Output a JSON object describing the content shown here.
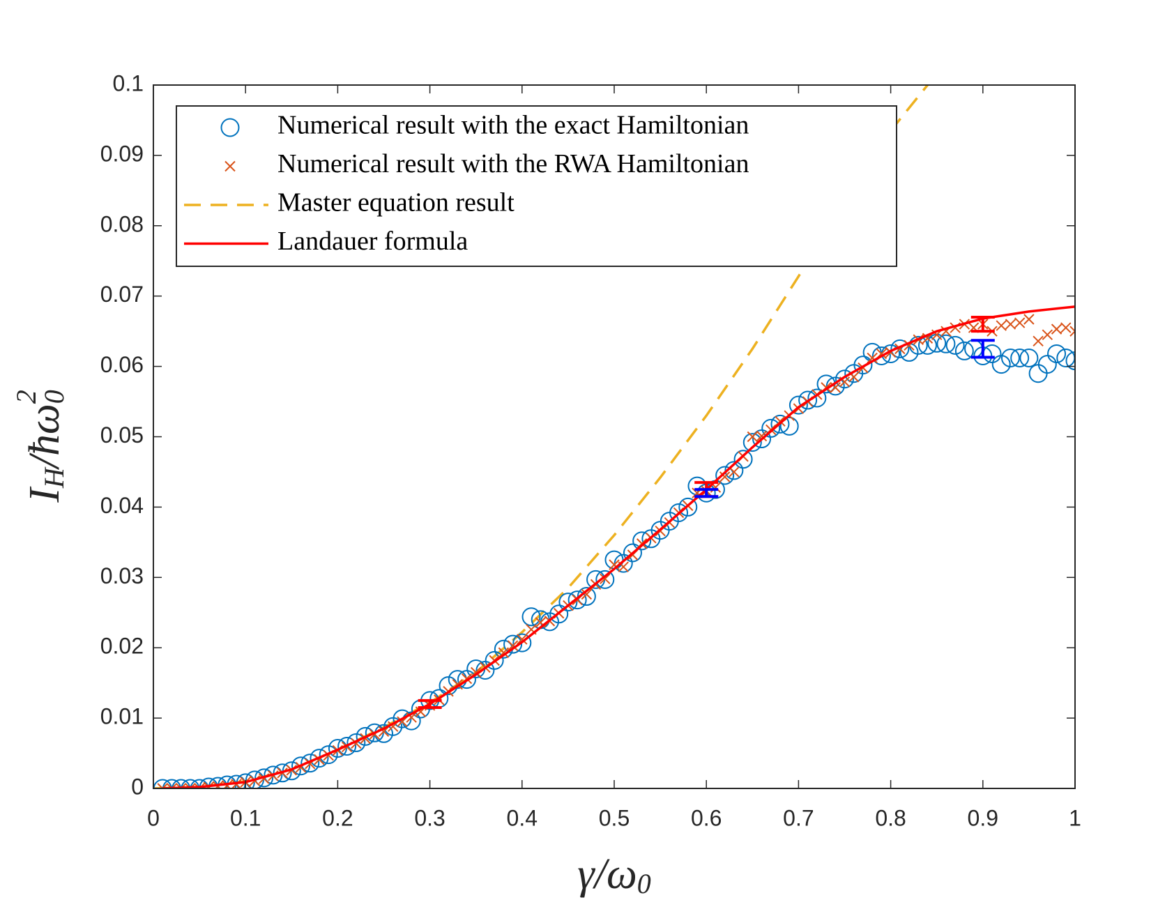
{
  "chart_data": {
    "type": "scatter",
    "xlabel": [
      "γ/ω",
      "0"
    ],
    "ylabel": [
      "I",
      "H",
      "/ħω",
      "0",
      "2"
    ],
    "xlim": [
      0,
      1
    ],
    "xticks": [
      0,
      0.1,
      0.2,
      0.3,
      0.4,
      0.5,
      0.6,
      0.7,
      0.8,
      0.9,
      1
    ],
    "ylim": [
      0,
      0.1
    ],
    "yticks": [
      0,
      0.01,
      0.02,
      0.03,
      0.04,
      0.05,
      0.06,
      0.07,
      0.08,
      0.09,
      0.1
    ],
    "grid": false,
    "legend": "upper left",
    "series": [
      {
        "name": "Numerical result with the exact Hamiltonian",
        "marker": "circle",
        "color": "#0072BD",
        "x": [
          0.01,
          0.02,
          0.03,
          0.04,
          0.05,
          0.06,
          0.07,
          0.08,
          0.09,
          0.1,
          0.11,
          0.12,
          0.13,
          0.14,
          0.15,
          0.16,
          0.17,
          0.18,
          0.19,
          0.2,
          0.21,
          0.22,
          0.23,
          0.24,
          0.25,
          0.26,
          0.27,
          0.28,
          0.29,
          0.3,
          0.31,
          0.32,
          0.33,
          0.34,
          0.35,
          0.36,
          0.37,
          0.38,
          0.39,
          0.4,
          0.41,
          0.42,
          0.43,
          0.44,
          0.45,
          0.46,
          0.47,
          0.48,
          0.49,
          0.5,
          0.51,
          0.52,
          0.53,
          0.54,
          0.55,
          0.56,
          0.57,
          0.58,
          0.59,
          0.6,
          0.61,
          0.62,
          0.63,
          0.64,
          0.65,
          0.66,
          0.67,
          0.68,
          0.69,
          0.7,
          0.71,
          0.72,
          0.73,
          0.74,
          0.75,
          0.76,
          0.77,
          0.78,
          0.79,
          0.8,
          0.81,
          0.82,
          0.83,
          0.84,
          0.85,
          0.86,
          0.87,
          0.88,
          0.89,
          0.9,
          0.91,
          0.92,
          0.93,
          0.94,
          0.95,
          0.96,
          0.97,
          0.98,
          0.99,
          1
        ],
        "values": [
          0,
          0,
          0,
          0,
          0,
          0.0002,
          0.0003,
          0.0005,
          0.0006,
          0.0008,
          0.0012,
          0.0015,
          0.0019,
          0.0022,
          0.0025,
          0.0032,
          0.0036,
          0.0043,
          0.0048,
          0.0057,
          0.006,
          0.0065,
          0.0074,
          0.0079,
          0.0078,
          0.0088,
          0.0099,
          0.0096,
          0.0113,
          0.0125,
          0.0128,
          0.0146,
          0.0155,
          0.0155,
          0.017,
          0.0168,
          0.0182,
          0.0198,
          0.0205,
          0.0207,
          0.0244,
          0.024,
          0.0237,
          0.0248,
          0.0265,
          0.0268,
          0.0273,
          0.0297,
          0.0297,
          0.0325,
          0.032,
          0.0335,
          0.0352,
          0.0355,
          0.0367,
          0.038,
          0.0392,
          0.04,
          0.043,
          0.042,
          0.0425,
          0.0445,
          0.0452,
          0.0468,
          0.0492,
          0.0497,
          0.0512,
          0.0518,
          0.0515,
          0.0545,
          0.0552,
          0.0555,
          0.0575,
          0.0572,
          0.0582,
          0.059,
          0.0602,
          0.062,
          0.0615,
          0.0618,
          0.0625,
          0.062,
          0.063,
          0.063,
          0.0633,
          0.0632,
          0.063,
          0.0622,
          0.0625,
          0.0615,
          0.0618,
          0.0603,
          0.0612,
          0.0612,
          0.0612,
          0.059,
          0.0603,
          0.0618,
          0.0612,
          0.0608
        ]
      },
      {
        "name": "Numerical result with the RWA Hamiltonian",
        "marker": "cross",
        "color": "#D95319",
        "x": [
          0.01,
          0.02,
          0.03,
          0.04,
          0.05,
          0.06,
          0.07,
          0.08,
          0.09,
          0.1,
          0.11,
          0.12,
          0.13,
          0.14,
          0.15,
          0.16,
          0.17,
          0.18,
          0.19,
          0.2,
          0.21,
          0.22,
          0.23,
          0.24,
          0.25,
          0.26,
          0.27,
          0.28,
          0.29,
          0.3,
          0.31,
          0.32,
          0.33,
          0.34,
          0.35,
          0.36,
          0.37,
          0.38,
          0.39,
          0.4,
          0.41,
          0.42,
          0.43,
          0.44,
          0.45,
          0.46,
          0.47,
          0.48,
          0.49,
          0.5,
          0.51,
          0.52,
          0.53,
          0.54,
          0.55,
          0.56,
          0.57,
          0.58,
          0.59,
          0.6,
          0.61,
          0.62,
          0.63,
          0.64,
          0.65,
          0.66,
          0.67,
          0.68,
          0.69,
          0.7,
          0.71,
          0.72,
          0.73,
          0.74,
          0.75,
          0.76,
          0.77,
          0.78,
          0.79,
          0.8,
          0.81,
          0.82,
          0.83,
          0.84,
          0.85,
          0.86,
          0.87,
          0.88,
          0.89,
          0.9,
          0.91,
          0.92,
          0.93,
          0.94,
          0.95,
          0.96,
          0.97,
          0.98,
          0.99,
          1
        ],
        "values": [
          0,
          0,
          0,
          0,
          0,
          0.0002,
          0.0003,
          0.0004,
          0.0006,
          0.0009,
          0.0011,
          0.0014,
          0.0018,
          0.0022,
          0.0026,
          0.003,
          0.0035,
          0.0041,
          0.0047,
          0.0054,
          0.0059,
          0.0064,
          0.0071,
          0.0077,
          0.0081,
          0.0088,
          0.0095,
          0.0101,
          0.0109,
          0.0118,
          0.0126,
          0.0138,
          0.0148,
          0.0156,
          0.0165,
          0.0172,
          0.0182,
          0.0193,
          0.0203,
          0.0212,
          0.0226,
          0.0236,
          0.0238,
          0.0249,
          0.026,
          0.0268,
          0.0276,
          0.029,
          0.0298,
          0.0318,
          0.0315,
          0.0332,
          0.0348,
          0.0356,
          0.0366,
          0.0378,
          0.0392,
          0.0402,
          0.042,
          0.0423,
          0.0428,
          0.0443,
          0.045,
          0.0472,
          0.05,
          0.0501,
          0.051,
          0.0522,
          0.053,
          0.054,
          0.055,
          0.056,
          0.057,
          0.057,
          0.0578,
          0.0585,
          0.0598,
          0.0612,
          0.0618,
          0.062,
          0.0625,
          0.063,
          0.0638,
          0.064,
          0.0645,
          0.065,
          0.0655,
          0.066,
          0.0655,
          0.066,
          0.065,
          0.0658,
          0.066,
          0.0662,
          0.0667,
          0.0636,
          0.0645,
          0.0653,
          0.0655,
          0.065
        ]
      },
      {
        "name": "Master equation result",
        "marker": "dashed",
        "color": "#EDB120",
        "x": [
          0,
          0.05,
          0.1,
          0.15,
          0.2,
          0.25,
          0.3,
          0.35,
          0.4,
          0.45,
          0.5,
          0.55,
          0.6,
          0.65,
          0.7,
          0.75,
          0.8,
          0.84
        ],
        "values": [
          0,
          0.0002,
          0.001,
          0.0027,
          0.0055,
          0.0087,
          0.0122,
          0.0165,
          0.0222,
          0.0285,
          0.036,
          0.0442,
          0.053,
          0.0625,
          0.0728,
          0.0835,
          0.0935,
          0.1
        ]
      },
      {
        "name": "Landauer formula",
        "marker": "line",
        "color": "#FF0000",
        "x": [
          0.01,
          0.05,
          0.1,
          0.15,
          0.2,
          0.25,
          0.3,
          0.35,
          0.4,
          0.45,
          0.5,
          0.55,
          0.6,
          0.65,
          0.7,
          0.75,
          0.8,
          0.85,
          0.9,
          0.95,
          1
        ],
        "values": [
          0,
          0.0002,
          0.0009,
          0.0027,
          0.0055,
          0.0085,
          0.012,
          0.0162,
          0.0208,
          0.026,
          0.0312,
          0.0368,
          0.0425,
          0.0485,
          0.0542,
          0.0585,
          0.0622,
          0.065,
          0.0668,
          0.0678,
          0.0685
        ]
      }
    ],
    "errorbars": [
      {
        "color": "#FF0000",
        "x": [
          0.3,
          0.6,
          0.9
        ],
        "values": [
          0.012,
          0.0425,
          0.066
        ],
        "errors": [
          0.0005,
          0.001,
          0.001
        ]
      },
      {
        "color": "#0000FF",
        "x": [
          0.6,
          0.9
        ],
        "values": [
          0.042,
          0.0625
        ],
        "errors": [
          0.0005,
          0.0012
        ]
      }
    ]
  }
}
